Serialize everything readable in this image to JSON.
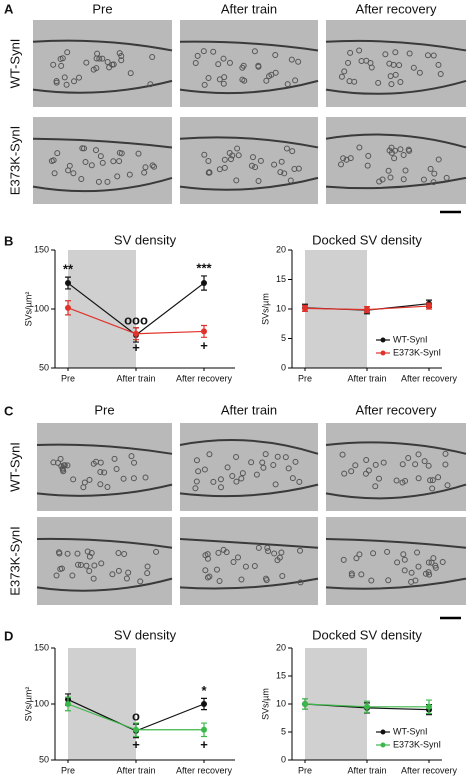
{
  "panels": {
    "a": "A",
    "b": "B",
    "c": "C",
    "d": "D"
  },
  "micrographs_top": {
    "columns": [
      "Pre",
      "After train",
      "After recovery"
    ],
    "rows": [
      "WT-SynI",
      "E373K-SynI"
    ]
  },
  "micrographs_bottom": {
    "columns": [
      "Pre",
      "After train",
      "After recovery"
    ],
    "rows": [
      "WT-SynI",
      "E373K-SynI"
    ]
  },
  "chart_data": [
    {
      "type": "line",
      "title": "SV density",
      "y_label": "SVs/µm²",
      "categories": [
        "Pre",
        "After train",
        "After recovery"
      ],
      "ylim": [
        50,
        150
      ],
      "yticks": [
        50,
        100,
        150
      ],
      "series": [
        {
          "name": "WT-SynI",
          "color": "#111111",
          "values": [
            122,
            78,
            122
          ],
          "errors": [
            5,
            6,
            6
          ]
        },
        {
          "name": "E373K-SynI",
          "color": "#e0322a",
          "values": [
            101,
            79,
            81
          ],
          "errors": [
            6,
            5,
            5
          ]
        }
      ],
      "annotations": [
        "**",
        "ooo",
        "***",
        "+",
        "+"
      ]
    },
    {
      "type": "line",
      "title": "Docked SV density",
      "y_label": "SVs/µm",
      "categories": [
        "Pre",
        "After train",
        "After recovery"
      ],
      "ylim": [
        0,
        20
      ],
      "yticks": [
        0,
        5,
        10,
        15,
        20
      ],
      "legend": "lower right",
      "series": [
        {
          "name": "WT-SynI",
          "color": "#111111",
          "values": [
            10.2,
            9.8,
            10.9
          ],
          "errors": [
            0.6,
            0.6,
            0.6
          ]
        },
        {
          "name": "E373K-SynI",
          "color": "#e0322a",
          "values": [
            10.1,
            9.9,
            10.5
          ],
          "errors": [
            0.5,
            0.5,
            0.5
          ]
        }
      ]
    },
    {
      "type": "line",
      "title": "SV density",
      "y_label": "SVs/µm²",
      "categories": [
        "Pre",
        "After train",
        "After recovery"
      ],
      "ylim": [
        50,
        150
      ],
      "yticks": [
        50,
        100,
        150
      ],
      "series": [
        {
          "name": "WT-SynI",
          "color": "#111111",
          "values": [
            104,
            76,
            100
          ],
          "errors": [
            5,
            6,
            5
          ]
        },
        {
          "name": "E373K-SynI",
          "color": "#3cb84a",
          "values": [
            100,
            77,
            77
          ],
          "errors": [
            6,
            6,
            6
          ]
        }
      ],
      "annotations": [
        "o",
        "*",
        "+",
        "+"
      ]
    },
    {
      "type": "line",
      "title": "Docked SV density",
      "y_label": "SVs/µm",
      "categories": [
        "Pre",
        "After train",
        "After recovery"
      ],
      "ylim": [
        0,
        20
      ],
      "yticks": [
        0,
        5,
        10,
        15,
        20
      ],
      "legend": "lower right",
      "series": [
        {
          "name": "WT-SynI",
          "color": "#111111",
          "values": [
            10,
            9.3,
            9
          ],
          "errors": [
            0.9,
            0.9,
            0.9
          ]
        },
        {
          "name": "E373K-SynI",
          "color": "#3cb84a",
          "values": [
            10,
            9.5,
            9.5
          ],
          "errors": [
            0.9,
            1,
            1.2
          ]
        }
      ]
    }
  ]
}
